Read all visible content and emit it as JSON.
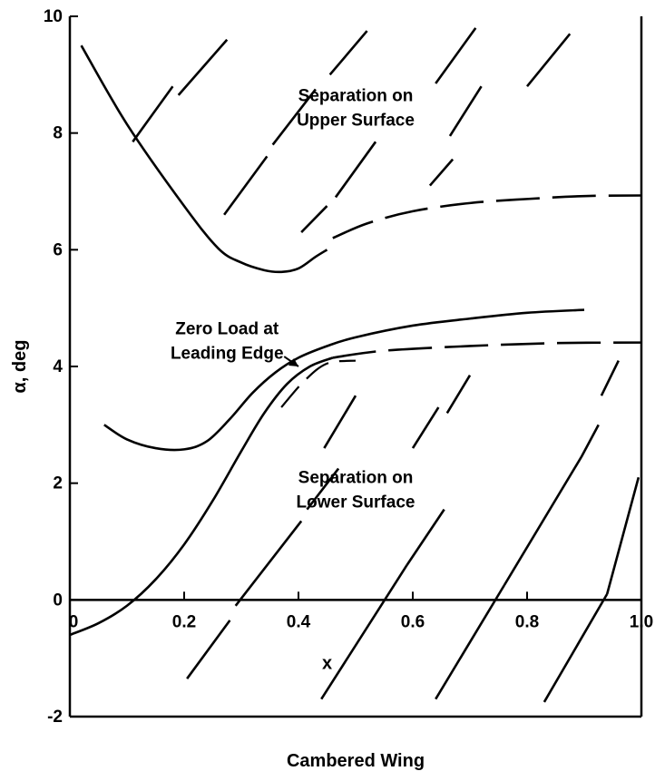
{
  "chart_data": {
    "type": "line",
    "title": "",
    "caption": "Cambered Wing",
    "xlabel": "x",
    "ylabel": "α, deg",
    "xlim": [
      0,
      1.0
    ],
    "ylim": [
      -2,
      10
    ],
    "x_ticks": [
      {
        "value": 0,
        "label": "0"
      },
      {
        "value": 0.2,
        "label": "0.2"
      },
      {
        "value": 0.4,
        "label": "0.4"
      },
      {
        "value": 0.6,
        "label": "0.6"
      },
      {
        "value": 0.8,
        "label": "0.8"
      },
      {
        "value": 1.0,
        "label": "1.0"
      }
    ],
    "y_ticks": [
      {
        "value": -2,
        "label": "-2"
      },
      {
        "value": 0,
        "label": "0"
      },
      {
        "value": 2,
        "label": "2"
      },
      {
        "value": 4,
        "label": "4"
      },
      {
        "value": 6,
        "label": "6"
      },
      {
        "value": 8,
        "label": "8"
      },
      {
        "value": 10,
        "label": "10"
      }
    ],
    "grid": false,
    "annotations": [
      {
        "lines": [
          "Separation on",
          "Upper Surface"
        ],
        "x": 0.5,
        "y": 8.55
      },
      {
        "lines": [
          "Zero Load at",
          "Leading Edge"
        ],
        "x": 0.275,
        "y": 4.55
      },
      {
        "lines": [
          "Separation on",
          "Lower Surface"
        ],
        "x": 0.5,
        "y": 2.0
      }
    ],
    "series": [
      {
        "style": "solid",
        "points": [
          [
            0.02,
            9.5
          ],
          [
            0.1,
            8.15
          ],
          [
            0.2,
            6.75
          ],
          [
            0.26,
            6.02
          ],
          [
            0.3,
            5.78
          ],
          [
            0.34,
            5.65
          ],
          [
            0.37,
            5.62
          ],
          [
            0.4,
            5.68
          ],
          [
            0.43,
            5.88
          ],
          [
            0.45,
            6.0
          ]
        ]
      },
      {
        "style": "dashed",
        "points": [
          [
            0.46,
            6.2
          ],
          [
            0.52,
            6.45
          ],
          [
            0.6,
            6.66
          ],
          [
            0.7,
            6.8
          ],
          [
            0.8,
            6.87
          ],
          [
            0.9,
            6.92
          ],
          [
            1.0,
            6.93
          ]
        ]
      },
      {
        "style": "solid",
        "points": [
          [
            0.06,
            3.0
          ],
          [
            0.1,
            2.75
          ],
          [
            0.15,
            2.6
          ],
          [
            0.2,
            2.58
          ],
          [
            0.24,
            2.72
          ],
          [
            0.28,
            3.1
          ],
          [
            0.32,
            3.55
          ],
          [
            0.36,
            3.9
          ],
          [
            0.4,
            4.15
          ],
          [
            0.45,
            4.35
          ],
          [
            0.5,
            4.5
          ],
          [
            0.6,
            4.7
          ],
          [
            0.7,
            4.82
          ],
          [
            0.8,
            4.92
          ],
          [
            0.9,
            4.97
          ]
        ]
      },
      {
        "style": "solid",
        "points": [
          [
            0.0,
            -0.6
          ],
          [
            0.05,
            -0.4
          ],
          [
            0.1,
            -0.1
          ],
          [
            0.15,
            0.35
          ],
          [
            0.2,
            0.95
          ],
          [
            0.25,
            1.7
          ],
          [
            0.3,
            2.55
          ],
          [
            0.34,
            3.2
          ],
          [
            0.38,
            3.7
          ],
          [
            0.42,
            4.0
          ],
          [
            0.46,
            4.15
          ]
        ]
      },
      {
        "style": "dashed",
        "points": [
          [
            0.46,
            4.15
          ],
          [
            0.55,
            4.27
          ],
          [
            0.7,
            4.35
          ],
          [
            0.85,
            4.4
          ],
          [
            1.0,
            4.41
          ]
        ]
      },
      {
        "style": "dashed-thin",
        "points": [
          [
            0.37,
            3.3
          ],
          [
            0.41,
            3.75
          ],
          [
            0.45,
            4.05
          ],
          [
            0.5,
            4.1
          ]
        ]
      }
    ],
    "hatch_upper": [
      [
        [
          0.11,
          7.85
        ],
        [
          0.18,
          8.8
        ]
      ],
      [
        [
          0.19,
          8.65
        ],
        [
          0.275,
          9.6
        ]
      ],
      [
        [
          0.27,
          6.6
        ],
        [
          0.345,
          7.6
        ]
      ],
      [
        [
          0.355,
          7.8
        ],
        [
          0.43,
          8.75
        ]
      ],
      [
        [
          0.455,
          9.0
        ],
        [
          0.52,
          9.75
        ]
      ],
      [
        [
          0.405,
          6.3
        ],
        [
          0.45,
          6.75
        ]
      ],
      [
        [
          0.465,
          6.9
        ],
        [
          0.535,
          7.85
        ]
      ],
      [
        [
          0.64,
          8.85
        ],
        [
          0.71,
          9.8
        ]
      ],
      [
        [
          0.63,
          7.1
        ],
        [
          0.67,
          7.55
        ]
      ],
      [
        [
          0.665,
          7.95
        ],
        [
          0.72,
          8.8
        ]
      ],
      [
        [
          0.8,
          8.8
        ],
        [
          0.875,
          9.7
        ]
      ]
    ],
    "hatch_lower": [
      [
        [
          0.205,
          -1.35
        ],
        [
          0.28,
          -0.35
        ]
      ],
      [
        [
          0.29,
          -0.1
        ],
        [
          0.405,
          1.35
        ]
      ],
      [
        [
          0.415,
          1.55
        ],
        [
          0.47,
          2.25
        ]
      ],
      [
        [
          0.445,
          2.6
        ],
        [
          0.5,
          3.5
        ]
      ],
      [
        [
          0.44,
          -1.7
        ],
        [
          0.59,
          0.6
        ]
      ],
      [
        [
          0.59,
          0.6
        ],
        [
          0.655,
          1.55
        ]
      ],
      [
        [
          0.6,
          2.6
        ],
        [
          0.645,
          3.3
        ]
      ],
      [
        [
          0.66,
          3.2
        ],
        [
          0.7,
          3.85
        ]
      ],
      [
        [
          0.64,
          -1.7
        ],
        [
          0.76,
          0.25
        ]
      ],
      [
        [
          0.76,
          0.25
        ],
        [
          0.895,
          2.45
        ]
      ],
      [
        [
          0.895,
          2.45
        ],
        [
          0.925,
          3.0
        ]
      ],
      [
        [
          0.93,
          3.5
        ],
        [
          0.96,
          4.1
        ]
      ],
      [
        [
          0.83,
          -1.75
        ],
        [
          0.94,
          0.1
        ]
      ],
      [
        [
          0.94,
          0.1
        ],
        [
          0.995,
          2.1
        ]
      ]
    ]
  }
}
